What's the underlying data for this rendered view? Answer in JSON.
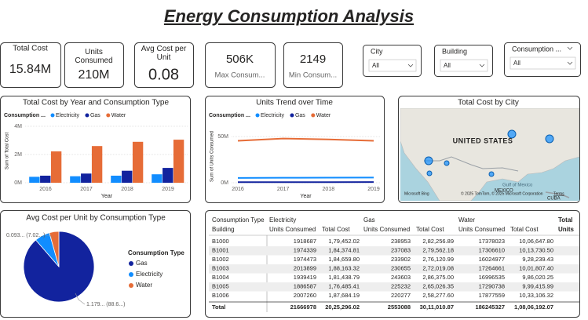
{
  "header": {
    "title": "Energy Consumption Analysis"
  },
  "cards": [
    {
      "label": "Total Cost",
      "value": "15.84M"
    },
    {
      "label": "Units Consumed",
      "value": "210M"
    },
    {
      "label": "Avg Cost per Unit",
      "value": "0.08"
    },
    {
      "label": "Max Consum...",
      "value": "506K"
    },
    {
      "label": "Min Consum...",
      "value": "2149"
    }
  ],
  "slicers": [
    {
      "label": "City",
      "value": "All"
    },
    {
      "label": "Building",
      "value": "All"
    },
    {
      "label": "Consumption ...",
      "value": "All"
    }
  ],
  "bar_chart": {
    "type": "bar",
    "title": "Total Cost by Year and Consumption Type",
    "legend_title": "Consumption ...",
    "x_label": "Year",
    "y_label": "Sum of Total Cost",
    "categories": [
      "2016",
      "2017",
      "2018",
      "2019"
    ],
    "series": [
      {
        "name": "Electricity",
        "color": "#118DFF",
        "values": [
          420000,
          460000,
          500000,
          600000
        ]
      },
      {
        "name": "Gas",
        "color": "#12239E",
        "values": [
          500000,
          650000,
          850000,
          1050000
        ]
      },
      {
        "name": "Water",
        "color": "#E66C37",
        "values": [
          2220000,
          2600000,
          2900000,
          3050000
        ]
      }
    ],
    "ylim": [
      0,
      4500000
    ],
    "yticks": [
      {
        "value": 0,
        "label": "0M"
      },
      {
        "value": 2000000,
        "label": "2M"
      },
      {
        "value": 4000000,
        "label": "4M"
      }
    ]
  },
  "line_chart": {
    "type": "line",
    "title": "Units Trend over Time",
    "legend_title": "Consumption ...",
    "x_label": "Year",
    "y_label": "Sum of Units Consumed",
    "categories": [
      "2016",
      "2017",
      "2018",
      "2019"
    ],
    "series": [
      {
        "name": "Electricity",
        "color": "#118DFF",
        "values": [
          5200000,
          5400000,
          5500000,
          5600000
        ]
      },
      {
        "name": "Gas",
        "color": "#12239E",
        "values": [
          600000,
          600000,
          650000,
          700000
        ]
      },
      {
        "name": "Water",
        "color": "#E66C37",
        "values": [
          45500000,
          48000000,
          47000000,
          45500000
        ]
      }
    ],
    "ylim": [
      0,
      57000000
    ],
    "yticks": [
      {
        "value": 0,
        "label": "0M"
      },
      {
        "value": 50000000,
        "label": "50M"
      }
    ]
  },
  "map": {
    "title": "Total Cost by City",
    "country": "UNITED STATES",
    "gulf": "Gulf of Mexico",
    "mexico": "MEXICO",
    "cuba": "CUBA",
    "brand": "Microsoft Bing",
    "credits": "© 2025 TomTom, © 2025 Microsoft Corporation",
    "terms": "Terms"
  },
  "pie_chart": {
    "type": "pie",
    "title": "Avg Cost per Unit by Consumption Type",
    "legend_title": "Consumption Type",
    "categories": [
      "Gas",
      "Electricity",
      "Water"
    ],
    "colors": [
      "#12239E",
      "#118DFF",
      "#E66C37"
    ],
    "values": [
      1.179,
      0.093,
      0.058
    ],
    "value_labels": [
      "1.179... (88.6...)",
      "0.093... (7.02...)",
      null
    ]
  },
  "table": {
    "corner": [
      "Consumption Type",
      "Building"
    ],
    "groups": [
      "Electricity",
      "Gas",
      "Water",
      "Total"
    ],
    "subheaders": [
      "Units Consumed",
      "Total Cost",
      "Units Consumed",
      "Total Cost",
      "Units Consumed",
      "Total Cost",
      "Units"
    ],
    "rows": [
      [
        "B1000",
        1918687,
        "1,79,452.02",
        238953,
        "2,82,256.89",
        17378023,
        "10,06,647.80"
      ],
      [
        "B1001",
        1974339,
        "1,84,374.81",
        237083,
        "2,79,562.18",
        17306610,
        "10,13,730.50"
      ],
      [
        "B1002",
        1974473,
        "1,84,659.80",
        233902,
        "2,76,120.99",
        16024977,
        "9,28,239.43"
      ],
      [
        "B1003",
        2013899,
        "1,88,163.32",
        230655,
        "2,72,019.08",
        17264661,
        "10,01,807.40"
      ],
      [
        "B1004",
        1939419,
        "1,81,438.79",
        243603,
        "2,86,375.00",
        16996535,
        "9,86,020.25"
      ],
      [
        "B1005",
        1886587,
        "1,76,485.41",
        225232,
        "2,65,026.35",
        17290738,
        "9,99,415.99"
      ],
      [
        "B1006",
        2007260,
        "1,87,684.19",
        220277,
        "2,58,277.60",
        17877559,
        "10,33,106.32"
      ]
    ],
    "total": [
      "Total",
      21666978,
      "20,25,296.02",
      2553088,
      "30,11,010.87",
      186245327,
      "1,08,06,192.07"
    ]
  }
}
